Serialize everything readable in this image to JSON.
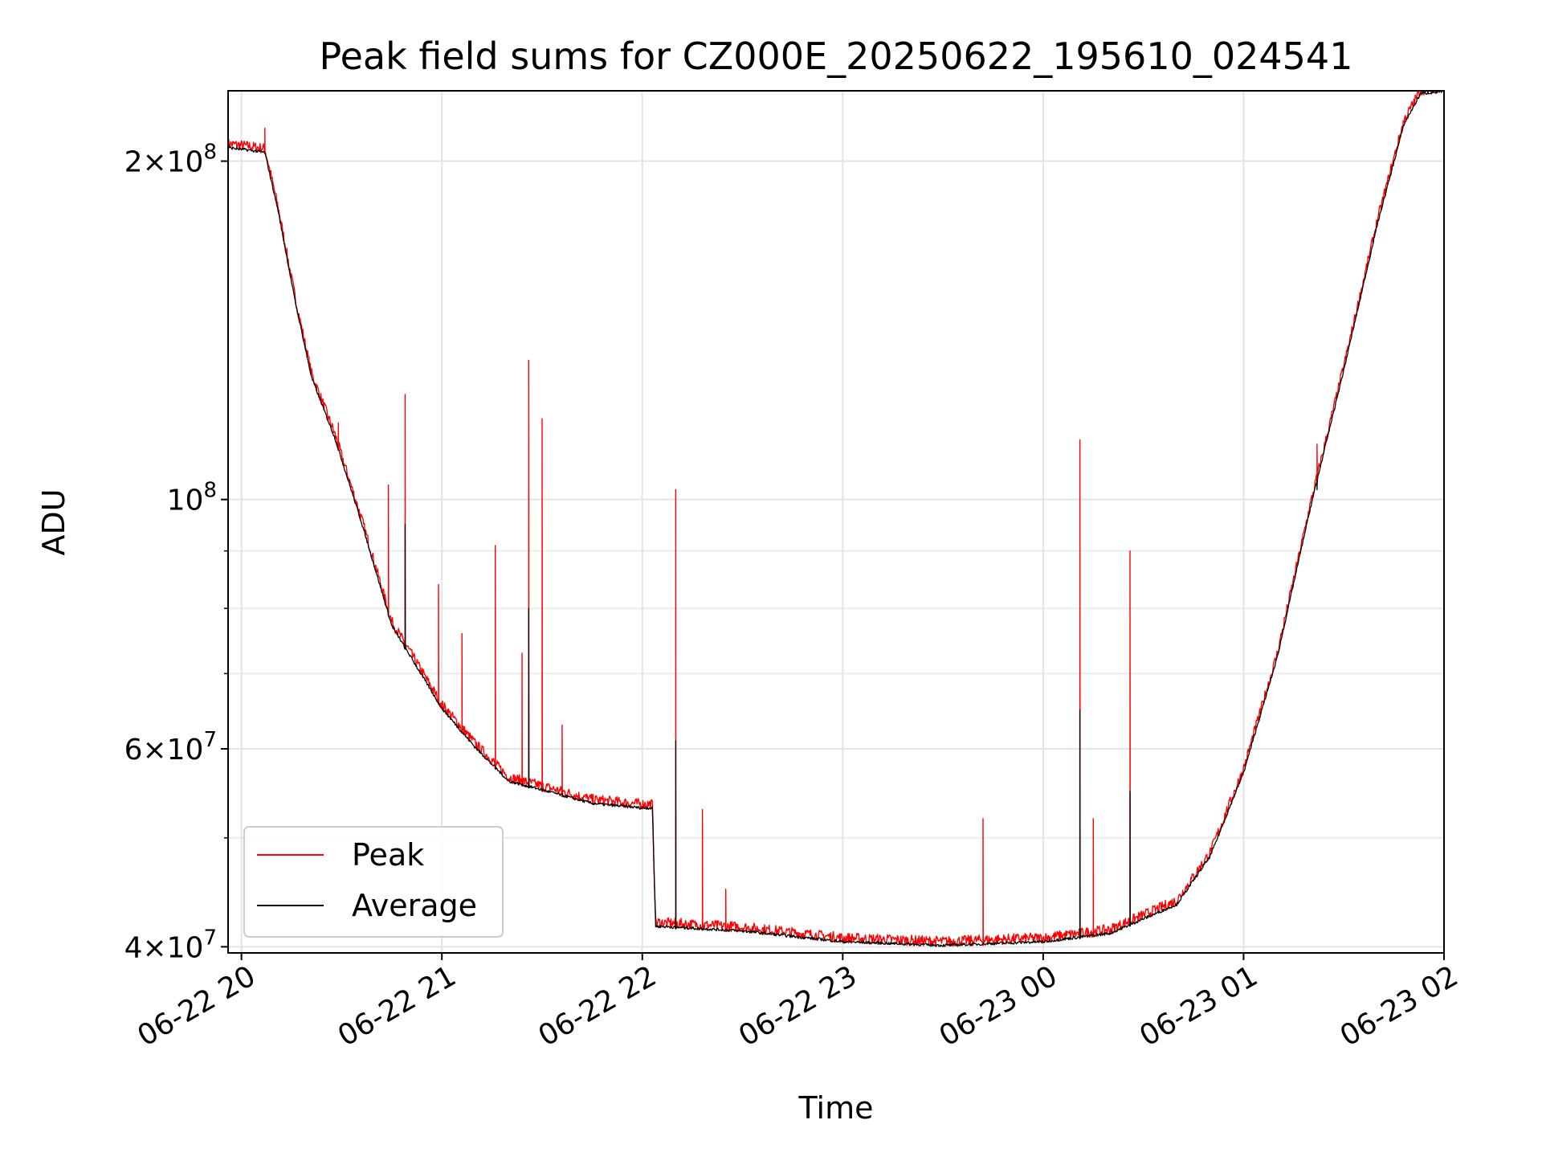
{
  "chart_data": {
    "type": "line",
    "title": "Peak field sums for CZ000E_20250622_195610_024541",
    "xlabel": "Time",
    "ylabel": "ADU",
    "y_scale": "log",
    "grid": true,
    "legend_position": "lower-left",
    "xlim": [
      "2025-06-22 19:56",
      "2025-06-23 02:00"
    ],
    "ylim": [
      39500000,
      231000000
    ],
    "x_ticks": [
      {
        "t": "2025-06-22 20:00",
        "label": "06-22 20"
      },
      {
        "t": "2025-06-22 21:00",
        "label": "06-22 21"
      },
      {
        "t": "2025-06-22 22:00",
        "label": "06-22 22"
      },
      {
        "t": "2025-06-22 23:00",
        "label": "06-22 23"
      },
      {
        "t": "2025-06-23 00:00",
        "label": "06-23 00"
      },
      {
        "t": "2025-06-23 01:00",
        "label": "06-23 01"
      },
      {
        "t": "2025-06-23 02:00",
        "label": "06-23 02"
      }
    ],
    "y_ticks": [
      {
        "value": 40000000,
        "mant": "4",
        "exp": "7"
      },
      {
        "value": 60000000,
        "mant": "6",
        "exp": "7"
      },
      {
        "value": 100000000,
        "mant": "",
        "exp": "8"
      },
      {
        "value": 200000000,
        "mant": "2",
        "exp": "8"
      }
    ],
    "y_minor_ticks": [
      50000000,
      70000000,
      80000000,
      90000000
    ],
    "series": [
      {
        "name": "Peak",
        "color": "#ff0000"
      },
      {
        "name": "Average",
        "color": "#000000"
      }
    ],
    "baseline": [
      [
        "2025-06-22 19:56",
        205000000
      ],
      [
        "2025-06-22 20:02",
        204000000
      ],
      [
        "2025-06-22 20:07",
        203000000
      ],
      [
        "2025-06-22 20:11",
        180000000
      ],
      [
        "2025-06-22 20:16",
        150000000
      ],
      [
        "2025-06-22 20:21",
        128000000
      ],
      [
        "2025-06-22 20:28",
        113000000
      ],
      [
        "2025-06-22 20:36",
        95000000
      ],
      [
        "2025-06-22 20:45",
        77000000
      ],
      [
        "2025-06-22 21:00",
        65000000
      ],
      [
        "2025-06-22 21:10",
        60000000
      ],
      [
        "2025-06-22 21:20",
        56000000
      ],
      [
        "2025-06-22 21:30",
        55000000
      ],
      [
        "2025-06-22 21:45",
        53500000
      ],
      [
        "2025-06-22 22:00",
        53000000
      ],
      [
        "2025-06-22 22:03",
        53000000
      ],
      [
        "2025-06-22 22:04",
        41600000
      ],
      [
        "2025-06-22 22:30",
        41200000
      ],
      [
        "2025-06-22 23:00",
        40300000
      ],
      [
        "2025-06-22 23:30",
        40000000
      ],
      [
        "2025-06-23 00:00",
        40300000
      ],
      [
        "2025-06-23 00:20",
        41000000
      ],
      [
        "2025-06-23 00:40",
        43500000
      ],
      [
        "2025-06-23 00:50",
        48000000
      ],
      [
        "2025-06-23 01:00",
        57000000
      ],
      [
        "2025-06-23 01:10",
        72000000
      ],
      [
        "2025-06-23 01:20",
        98000000
      ],
      [
        "2025-06-23 01:30",
        130000000
      ],
      [
        "2025-06-23 01:40",
        175000000
      ],
      [
        "2025-06-23 01:48",
        215000000
      ],
      [
        "2025-06-23 01:53",
        229000000
      ],
      [
        "2025-06-23 02:00",
        230000000
      ]
    ],
    "peak_spikes": [
      [
        "2025-06-22 20:07",
        214000000
      ],
      [
        "2025-06-22 20:29",
        117000000
      ],
      [
        "2025-06-22 20:44",
        103000000
      ],
      [
        "2025-06-22 20:49",
        124000000
      ],
      [
        "2025-06-22 20:59",
        84000000
      ],
      [
        "2025-06-22 21:06",
        76000000
      ],
      [
        "2025-06-22 21:16",
        91000000
      ],
      [
        "2025-06-22 21:24",
        73000000
      ],
      [
        "2025-06-22 21:26",
        133000000
      ],
      [
        "2025-06-22 21:30",
        118000000
      ],
      [
        "2025-06-22 21:36",
        63000000
      ],
      [
        "2025-06-22 22:10",
        102000000
      ],
      [
        "2025-06-22 22:18",
        53000000
      ],
      [
        "2025-06-22 22:25",
        45000000
      ],
      [
        "2025-06-22 23:42",
        52000000
      ],
      [
        "2025-06-23 00:11",
        113000000
      ],
      [
        "2025-06-23 00:15",
        52000000
      ],
      [
        "2025-06-23 00:26",
        90000000
      ],
      [
        "2025-06-23 01:22",
        112000000
      ]
    ],
    "average_spikes": [
      [
        "2025-06-22 20:49",
        95000000
      ],
      [
        "2025-06-22 21:26",
        80000000
      ],
      [
        "2025-06-22 22:10",
        61000000
      ],
      [
        "2025-06-23 00:11",
        65000000
      ],
      [
        "2025-06-23 00:26",
        55000000
      ],
      [
        "2025-06-23 01:22",
        102000000
      ]
    ]
  }
}
